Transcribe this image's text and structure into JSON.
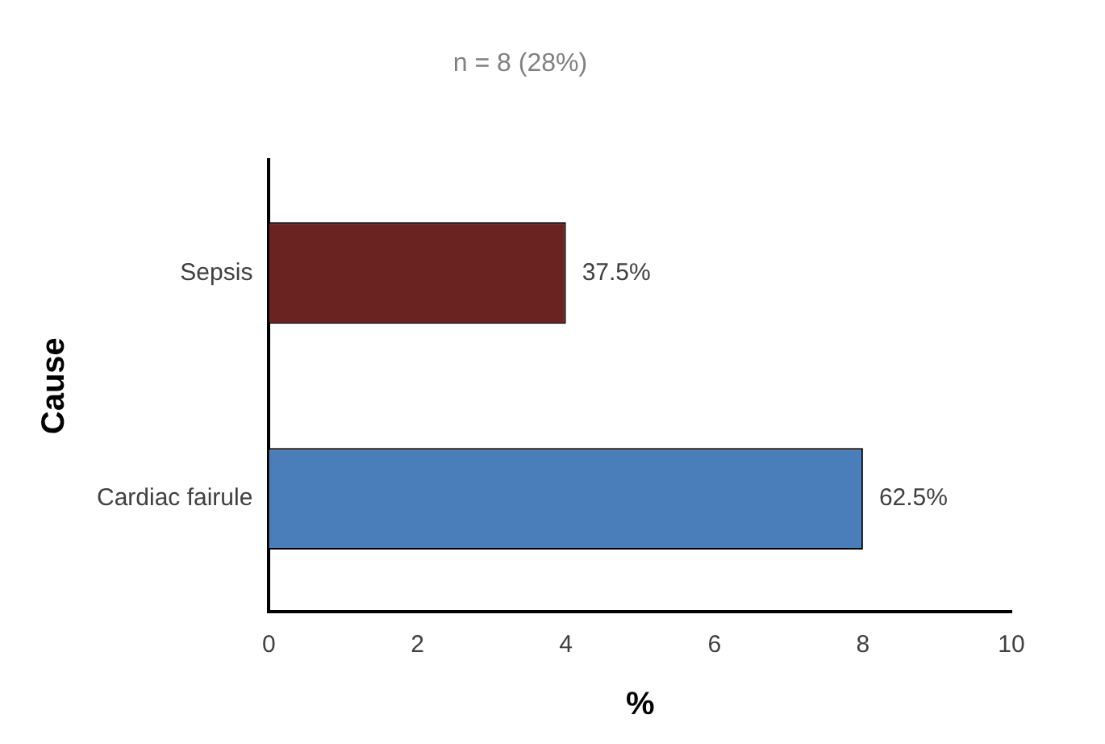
{
  "chart_data": {
    "type": "bar",
    "orientation": "horizontal",
    "title": "n = 8 (28%)",
    "xlabel": "%",
    "ylabel": "Cause",
    "categories": [
      "Sepsis",
      "Cardiac fairule"
    ],
    "values": [
      4,
      8
    ],
    "colors": [
      "#6b2322",
      "#4a7ebb"
    ],
    "annotations": [
      {
        "text": "37.5%",
        "x": 4,
        "y": "Sepsis"
      },
      {
        "text": "62.5%",
        "x": 8,
        "y": "Cardiac fairule"
      }
    ],
    "xlim": [
      0,
      10
    ],
    "xticks": [
      0,
      2,
      4,
      6,
      8,
      10
    ],
    "grid": false,
    "legend": false
  }
}
